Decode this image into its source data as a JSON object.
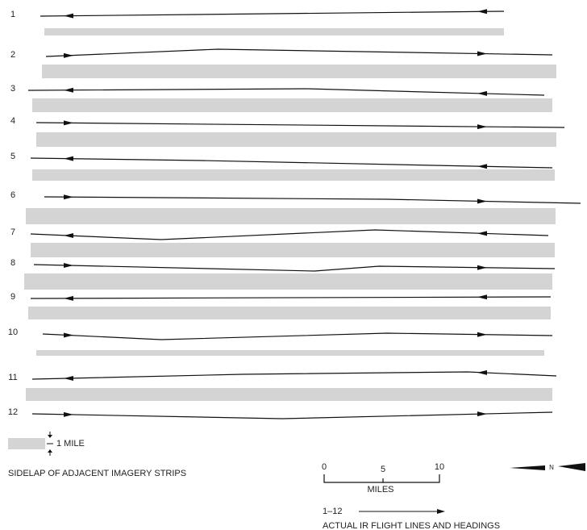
{
  "flight_lines": {
    "labels": [
      "1",
      "2",
      "3",
      "4",
      "5",
      "6",
      "7",
      "8",
      "9",
      "10",
      "11",
      "12"
    ]
  },
  "legend": {
    "strip_width": "1 MILE",
    "strip_caption": "SIDELAP OF ADJACENT IMAGERY STRIPS"
  },
  "scale": {
    "ticks": [
      "0",
      "5",
      "10"
    ],
    "unit": "MILES"
  },
  "key": {
    "range": "1–12",
    "caption": "ACTUAL IR FLIGHT LINES AND HEADINGS"
  },
  "north": "N"
}
